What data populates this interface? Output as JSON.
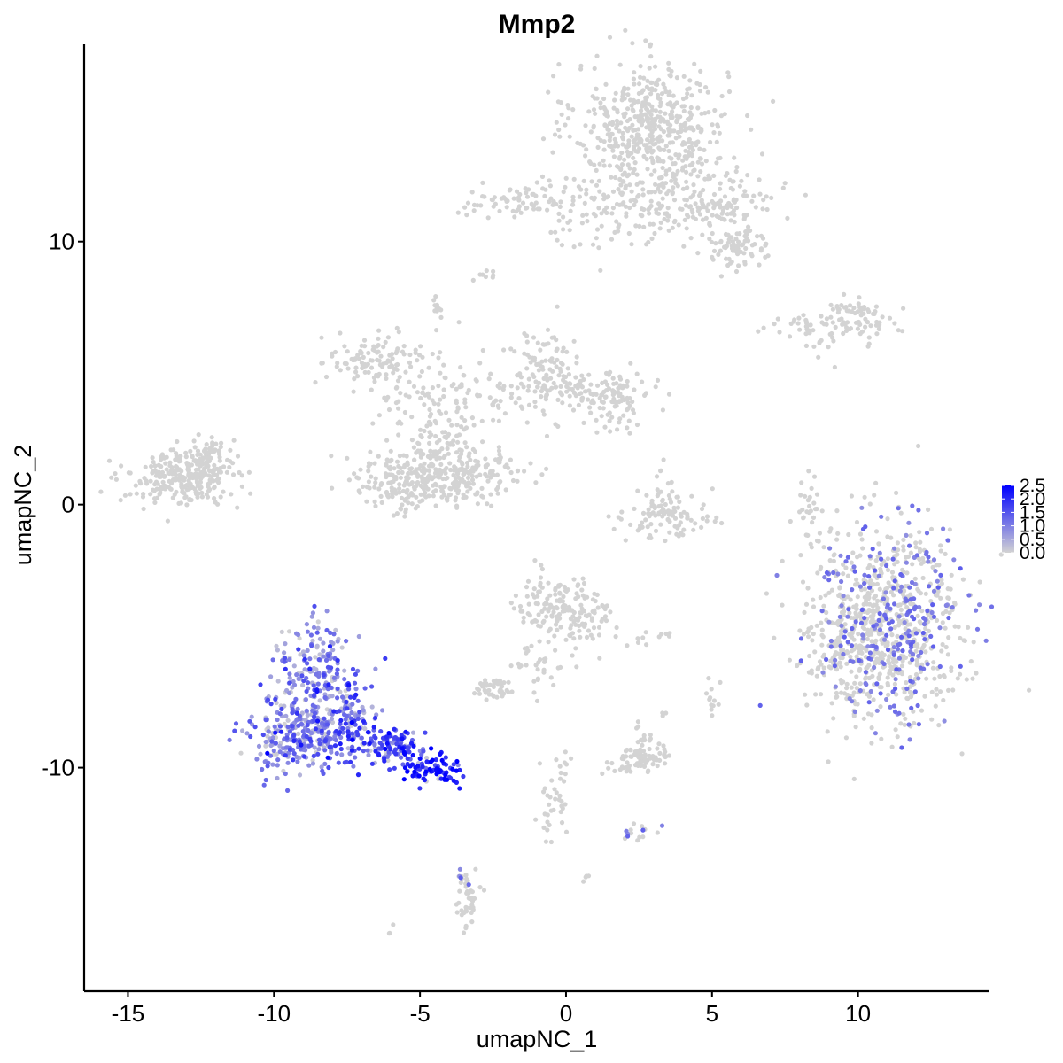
{
  "chart_data": {
    "type": "scatter",
    "title": "Mmp2",
    "xlabel": "umapNC_1",
    "ylabel": "umapNC_2",
    "xlim": [
      -16.5,
      14.5
    ],
    "ylim": [
      -18.5,
      17.5
    ],
    "x_ticks": [
      -15,
      -10,
      -5,
      0,
      5,
      10
    ],
    "x_tick_labels": [
      "-15",
      "-10",
      "-5",
      "0",
      "5",
      "10"
    ],
    "y_ticks": [
      -10,
      0,
      10
    ],
    "y_tick_labels": [
      "-10",
      "0",
      "10"
    ],
    "grid": false,
    "legend_position": "right",
    "color_scale": {
      "low": "#d3d3d3",
      "high": "#0000ff",
      "min": 0.0,
      "max": 2.5,
      "breaks": [
        0.0,
        0.5,
        1.0,
        1.5,
        2.0,
        2.5
      ],
      "labels": [
        "0.0",
        "0.5",
        "1.0",
        "1.5",
        "2.0",
        "2.5"
      ]
    },
    "clusters": [
      {
        "cx": 2.9,
        "cy": 14.4,
        "sx": 1.3,
        "sy": 1.2,
        "n": 520,
        "expr": 0
      },
      {
        "cx": 1.5,
        "cy": 11.2,
        "sx": 1.6,
        "sy": 0.7,
        "n": 130,
        "expr": 0
      },
      {
        "cx": 4.8,
        "cy": 11.6,
        "sx": 1.2,
        "sy": 0.6,
        "n": 160,
        "expr": 0
      },
      {
        "cx": 5.9,
        "cy": 9.8,
        "sx": 0.6,
        "sy": 0.4,
        "n": 80,
        "expr": 0
      },
      {
        "cx": -1.7,
        "cy": 11.5,
        "sx": 0.9,
        "sy": 0.3,
        "n": 60,
        "expr": 0
      },
      {
        "cx": -2.8,
        "cy": 8.7,
        "sx": 0.2,
        "sy": 0.15,
        "n": 8,
        "expr": 0
      },
      {
        "cx": -4.4,
        "cy": 7.5,
        "sx": 0.15,
        "sy": 0.25,
        "n": 10,
        "expr": 0
      },
      {
        "cx": 8.6,
        "cy": 6.8,
        "sx": 1.0,
        "sy": 0.3,
        "n": 50,
        "expr": 0
      },
      {
        "cx": 10.0,
        "cy": 7.1,
        "sx": 0.6,
        "sy": 0.4,
        "n": 60,
        "expr": 0
      },
      {
        "cx": 8.9,
        "cy": 6.0,
        "sx": 0.3,
        "sy": 0.3,
        "n": 5,
        "expr": 0
      },
      {
        "cx": -6.6,
        "cy": 5.5,
        "sx": 0.8,
        "sy": 0.5,
        "n": 110,
        "expr": 0
      },
      {
        "cx": -4.8,
        "cy": 4.2,
        "sx": 0.9,
        "sy": 0.7,
        "n": 60,
        "expr": 0
      },
      {
        "cx": -3.6,
        "cy": 3.2,
        "sx": 0.5,
        "sy": 1.6,
        "n": 50,
        "expr": 0
      },
      {
        "cx": -1.8,
        "cy": 4.0,
        "sx": 1.0,
        "sy": 0.6,
        "n": 50,
        "expr": 0
      },
      {
        "cx": -0.7,
        "cy": 5.2,
        "sx": 0.6,
        "sy": 0.7,
        "n": 90,
        "expr": 0
      },
      {
        "cx": 1.7,
        "cy": 4.0,
        "sx": 0.6,
        "sy": 0.5,
        "n": 100,
        "expr": 0
      },
      {
        "cx": 0.3,
        "cy": 4.3,
        "sx": 0.6,
        "sy": 0.3,
        "n": 40,
        "expr": 0
      },
      {
        "cx": -5.6,
        "cy": 0.9,
        "sx": 0.9,
        "sy": 0.6,
        "n": 180,
        "expr": 0
      },
      {
        "cx": -3.7,
        "cy": 0.9,
        "sx": 0.7,
        "sy": 0.6,
        "n": 130,
        "expr": 0
      },
      {
        "cx": -4.6,
        "cy": 2.3,
        "sx": 0.5,
        "sy": 0.5,
        "n": 50,
        "expr": 0
      },
      {
        "cx": -13.2,
        "cy": 1.0,
        "sx": 0.9,
        "sy": 0.5,
        "n": 260,
        "expr": 0
      },
      {
        "cx": -12.1,
        "cy": 1.8,
        "sx": 0.5,
        "sy": 0.4,
        "n": 60,
        "expr": 0
      },
      {
        "cx": -1.8,
        "cy": 1.3,
        "sx": 0.6,
        "sy": 0.4,
        "n": 30,
        "expr": 0
      },
      {
        "cx": 3.5,
        "cy": -0.5,
        "sx": 0.8,
        "sy": 0.4,
        "n": 90,
        "expr": 0
      },
      {
        "cx": 3.2,
        "cy": 0.5,
        "sx": 0.2,
        "sy": 0.5,
        "n": 20,
        "expr": 0
      },
      {
        "cx": 8.3,
        "cy": -0.2,
        "sx": 0.2,
        "sy": 0.7,
        "n": 30,
        "expr": 0
      },
      {
        "cx": 11.0,
        "cy": -4.5,
        "sx": 1.3,
        "sy": 1.9,
        "n": 900,
        "expr": 0.01
      },
      {
        "cx": 9.3,
        "cy": -5.5,
        "sx": 0.7,
        "sy": 1.0,
        "n": 80,
        "expr": 0
      },
      {
        "cx": -0.4,
        "cy": -3.8,
        "sx": 0.6,
        "sy": 0.6,
        "n": 130,
        "expr": 0
      },
      {
        "cx": 0.8,
        "cy": -4.5,
        "sx": 0.5,
        "sy": 0.6,
        "n": 50,
        "expr": 0
      },
      {
        "cx": -1.0,
        "cy": -6.2,
        "sx": 0.5,
        "sy": 0.6,
        "n": 30,
        "expr": 0
      },
      {
        "cx": -2.5,
        "cy": -7.0,
        "sx": 0.3,
        "sy": 0.2,
        "n": 40,
        "expr": 0
      },
      {
        "cx": 2.5,
        "cy": -9.6,
        "sx": 0.5,
        "sy": 0.3,
        "n": 80,
        "expr": 0
      },
      {
        "cx": 2.6,
        "cy": -8.8,
        "sx": 0.2,
        "sy": 0.3,
        "n": 10,
        "expr": 0
      },
      {
        "cx": 3.0,
        "cy": -5.0,
        "sx": 0.4,
        "sy": 0.1,
        "n": 10,
        "expr": 0
      },
      {
        "cx": 5.0,
        "cy": -7.4,
        "sx": 0.15,
        "sy": 0.3,
        "n": 12,
        "expr": 0
      },
      {
        "cx": 3.3,
        "cy": -7.9,
        "sx": 0.1,
        "sy": 0.1,
        "n": 3,
        "expr": 0
      },
      {
        "cx": -0.4,
        "cy": -11.0,
        "sx": 0.3,
        "sy": 1.0,
        "n": 40,
        "expr": 0
      },
      {
        "cx": 2.2,
        "cy": -12.5,
        "sx": 0.4,
        "sy": 0.2,
        "n": 15,
        "expr": 0.05
      },
      {
        "cx": 0.7,
        "cy": -14.2,
        "sx": 0.1,
        "sy": 0.1,
        "n": 4,
        "expr": 0.1
      },
      {
        "cx": -3.4,
        "cy": -15.0,
        "sx": 0.2,
        "sy": 0.5,
        "n": 40,
        "expr": 0
      },
      {
        "cx": -3.6,
        "cy": -14.1,
        "sx": 0.1,
        "sy": 0.2,
        "n": 8,
        "expr": 0.1
      },
      {
        "cx": -6.0,
        "cy": -16.2,
        "sx": 0.1,
        "sy": 0.1,
        "n": 3,
        "expr": 0
      },
      {
        "cx": -8.6,
        "cy": -6.2,
        "sx": 0.6,
        "sy": 0.9,
        "n": 160,
        "expr": 0.9
      },
      {
        "cx": -9.2,
        "cy": -8.8,
        "sx": 0.9,
        "sy": 0.8,
        "n": 280,
        "expr": 1.0
      },
      {
        "cx": -7.6,
        "cy": -8.2,
        "sx": 0.6,
        "sy": 0.9,
        "n": 150,
        "expr": 1.3
      },
      {
        "cx": -6.0,
        "cy": -9.2,
        "sx": 0.6,
        "sy": 0.4,
        "n": 110,
        "expr": 1.6
      },
      {
        "cx": -4.6,
        "cy": -10.0,
        "sx": 0.5,
        "sy": 0.3,
        "n": 70,
        "expr": 2.1
      },
      {
        "cx": -4.1,
        "cy": -10.4,
        "sx": 0.15,
        "sy": 0.1,
        "n": 10,
        "expr": 2.4
      }
    ]
  }
}
